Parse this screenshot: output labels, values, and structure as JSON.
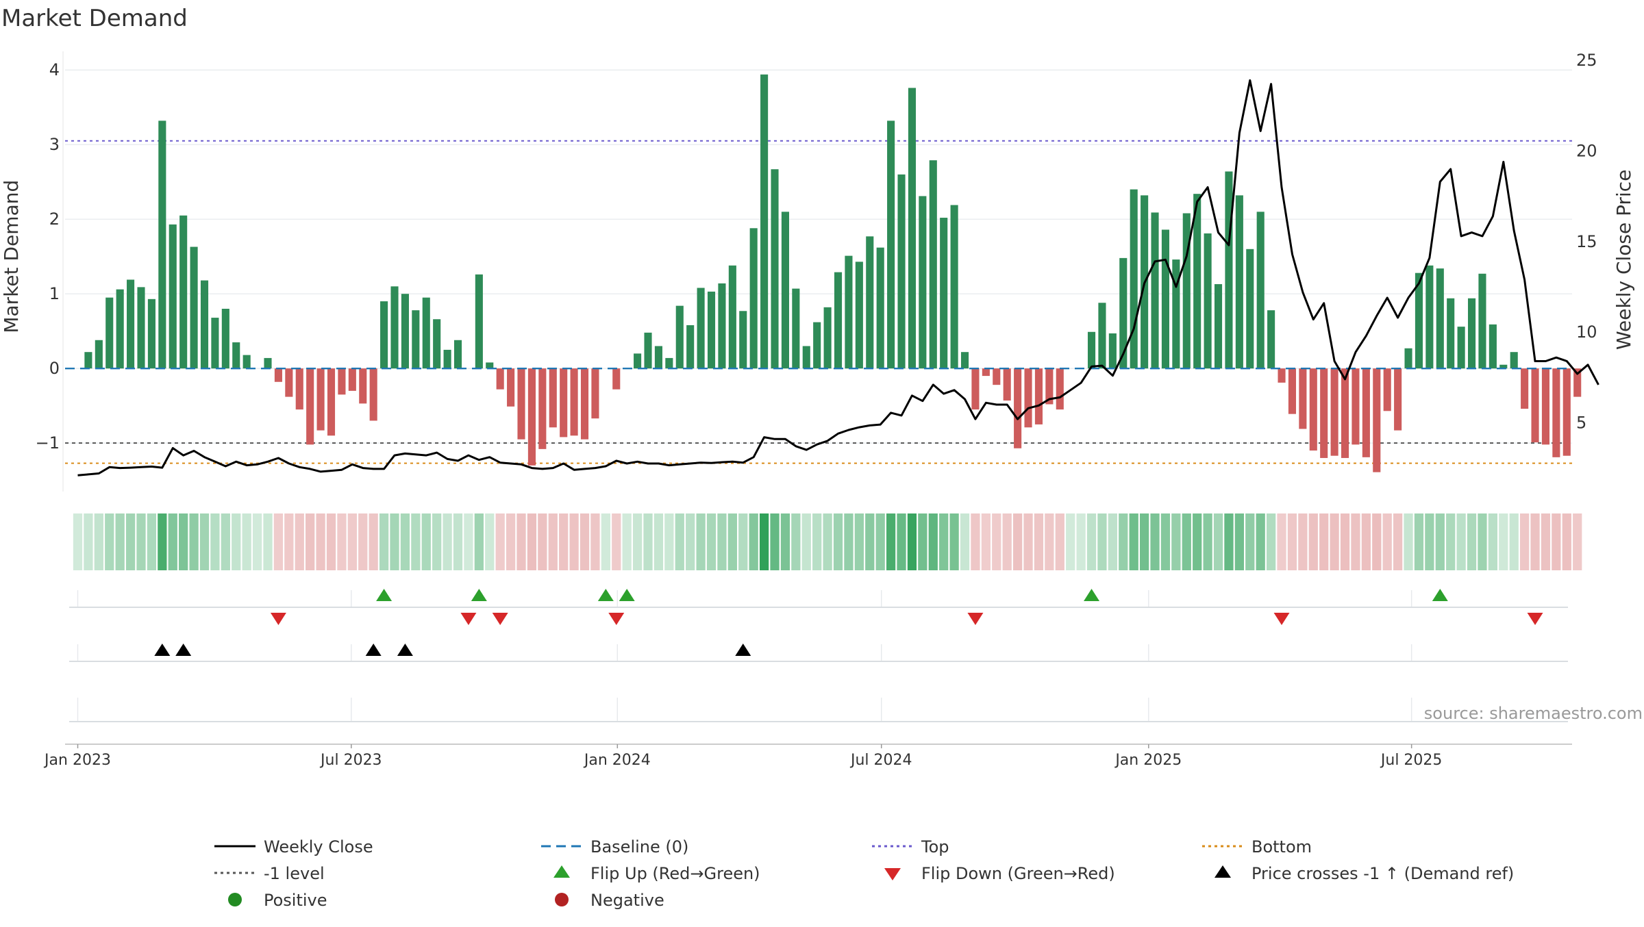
{
  "chart_data": {
    "type": "bar",
    "title": "Market Demand",
    "source_note": "source: sharemaestro.com",
    "ylabel_left": "Market Demand",
    "ylabel_right": "Weekly Close Price",
    "left_ylim": [
      -1.65,
      4.25
    ],
    "left_ticks": [
      -1,
      0,
      1,
      2,
      3,
      4
    ],
    "left_tick_labels": [
      "−1",
      "0",
      "1",
      "2",
      "3",
      "4"
    ],
    "right_ylim": [
      1.2,
      25.5
    ],
    "right_ticks": [
      5,
      10,
      15,
      20,
      25
    ],
    "right_tick_labels": [
      "5",
      "10",
      "15",
      "20",
      "25"
    ],
    "x_range_weeks": [
      -1.2,
      141.5
    ],
    "x_ticks_week": [
      0,
      25.9,
      51.1,
      76.1,
      101.4,
      126.3
    ],
    "x_tick_labels": [
      "Jan 2023",
      "Jul 2023",
      "Jan 2024",
      "Jul 2024",
      "Jan 2025",
      "Jul 2025"
    ],
    "reference_lines": {
      "top": 3.05,
      "bottom": -1.27,
      "minus_one": -1,
      "baseline": 0
    },
    "colors": {
      "positive": "#2e8b57",
      "negative": "#cd5c5c",
      "weekly_close": "#000000",
      "baseline": "#1f77b4",
      "top": "#6a5acd",
      "bottom": "#d98c1a",
      "minus_one": "#555555",
      "flip_up": "#2ca02c",
      "flip_down": "#d62728",
      "cross": "#000000",
      "positive_dot": "#228b22",
      "negative_dot": "#b22222"
    },
    "demand_values": [
      0.0,
      0.22,
      0.38,
      0.95,
      1.06,
      1.19,
      1.09,
      0.93,
      3.32,
      1.93,
      2.05,
      1.63,
      1.18,
      0.68,
      0.8,
      0.35,
      0.18,
      0.0,
      0.14,
      -0.18,
      -0.38,
      -0.55,
      -1.02,
      -0.83,
      -0.9,
      -0.35,
      -0.3,
      -0.47,
      -0.7,
      0.9,
      1.1,
      1.0,
      0.78,
      0.95,
      0.66,
      0.25,
      0.38,
      0.0,
      1.26,
      0.08,
      -0.28,
      -0.51,
      -0.95,
      -1.3,
      -1.08,
      -0.79,
      -0.92,
      -0.9,
      -0.95,
      -0.67,
      0.0,
      -0.28,
      0.0,
      0.2,
      0.48,
      0.3,
      0.14,
      0.84,
      0.58,
      1.08,
      1.03,
      1.14,
      1.38,
      0.77,
      1.88,
      3.94,
      2.67,
      2.1,
      1.07,
      0.3,
      0.62,
      0.82,
      1.29,
      1.51,
      1.43,
      1.77,
      1.62,
      3.32,
      2.6,
      3.76,
      2.31,
      2.79,
      2.02,
      2.19,
      0.22,
      -0.55,
      -0.1,
      -0.22,
      -0.43,
      -1.07,
      -0.79,
      -0.75,
      -0.48,
      -0.55,
      0.0,
      0.0,
      0.49,
      0.88,
      0.47,
      1.48,
      2.4,
      2.32,
      2.09,
      1.86,
      1.46,
      2.08,
      2.34,
      1.81,
      1.13,
      2.64,
      2.32,
      1.6,
      2.1,
      0.78,
      -0.19,
      -0.61,
      -0.81,
      -1.1,
      -1.2,
      -1.17,
      -1.2,
      -1.02,
      -1.19,
      -1.39,
      -0.57,
      -0.83,
      0.27,
      1.28,
      1.38,
      1.34,
      0.94,
      0.56,
      0.94,
      1.27,
      0.59,
      0.05,
      0.22,
      -0.54,
      -0.99,
      -1.02,
      -1.19,
      -1.17,
      -0.38
    ],
    "weekly_close": [
      2.1,
      2.15,
      2.2,
      2.55,
      2.5,
      2.52,
      2.55,
      2.58,
      2.52,
      3.6,
      3.2,
      3.45,
      3.1,
      2.85,
      2.6,
      2.85,
      2.65,
      2.7,
      2.85,
      3.05,
      2.75,
      2.55,
      2.45,
      2.3,
      2.35,
      2.4,
      2.7,
      2.5,
      2.45,
      2.45,
      3.2,
      3.3,
      3.25,
      3.2,
      3.35,
      3.0,
      2.9,
      3.2,
      2.95,
      3.1,
      2.8,
      2.75,
      2.7,
      2.5,
      2.45,
      2.5,
      2.75,
      2.4,
      2.45,
      2.5,
      2.6,
      2.9,
      2.75,
      2.85,
      2.75,
      2.75,
      2.65,
      2.7,
      2.75,
      2.8,
      2.78,
      2.82,
      2.85,
      2.8,
      3.1,
      4.2,
      4.1,
      4.1,
      3.7,
      3.5,
      3.8,
      4.0,
      4.4,
      4.6,
      4.75,
      4.85,
      4.9,
      5.55,
      5.4,
      6.5,
      6.2,
      7.1,
      6.6,
      6.8,
      6.3,
      5.2,
      6.1,
      6.0,
      6.0,
      5.2,
      5.8,
      5.95,
      6.3,
      6.4,
      6.8,
      7.2,
      8.1,
      8.15,
      7.6,
      8.8,
      10.2,
      12.7,
      13.9,
      14.0,
      12.5,
      14.2,
      17.2,
      18.0,
      15.5,
      14.8,
      21.0,
      23.9,
      21.1,
      23.7,
      18.0,
      14.3,
      12.2,
      10.7,
      11.6,
      8.4,
      7.4,
      8.9,
      9.8,
      10.9,
      11.9,
      10.8,
      11.9,
      12.7,
      14.1,
      18.3,
      19.0,
      15.3,
      15.5,
      15.3,
      16.4,
      19.4,
      15.6,
      12.9,
      8.4,
      8.4,
      8.6,
      8.4,
      7.7,
      8.2,
      7.1
    ],
    "flip_up_weeks": [
      29,
      38,
      50,
      52,
      96,
      129
    ],
    "flip_down_weeks": [
      19,
      37,
      40,
      51,
      85,
      114,
      138
    ],
    "price_cross_weeks": [
      8,
      10,
      28,
      31,
      63
    ],
    "legend": [
      "Weekly Close",
      "Baseline (0)",
      "Top",
      "Bottom",
      "-1 level",
      "Flip Up (Red→Green)",
      "Flip Down (Green→Red)",
      "Price crosses -1 ↑ (Demand ref)",
      "Positive",
      "Negative"
    ]
  }
}
